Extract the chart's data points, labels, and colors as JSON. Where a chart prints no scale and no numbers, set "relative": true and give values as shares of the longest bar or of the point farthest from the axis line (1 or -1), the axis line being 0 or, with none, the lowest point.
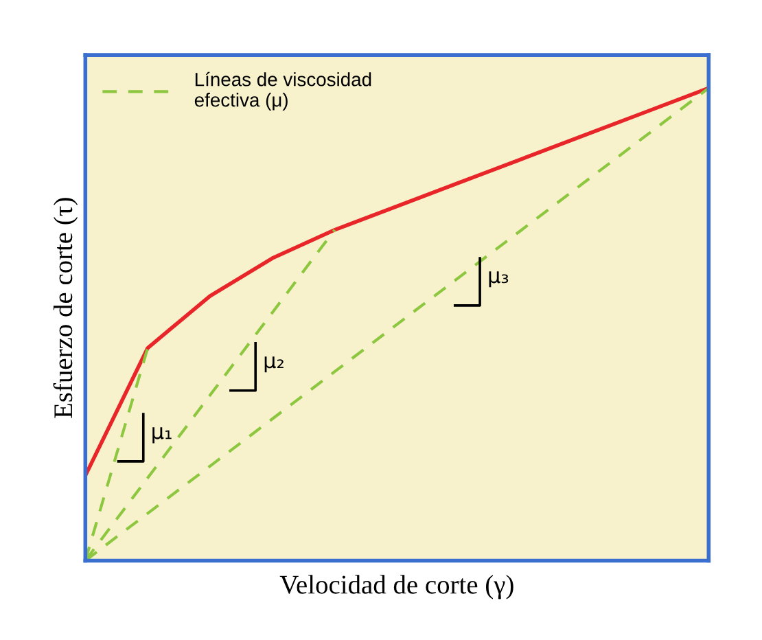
{
  "chart_data": {
    "type": "line",
    "relative": true,
    "xlabel": "Velocidad de corte (γ)",
    "ylabel": "Esfuerzo de corte (τ)",
    "legend": "top left",
    "categories": [
      null,
      null,
      null,
      null,
      null,
      null,
      null,
      null,
      null,
      null,
      null
    ],
    "series": [
      {
        "color": "#e8262a",
        "values": [
          0.18,
          0.45,
          0.56,
          0.64,
          0.7,
          0.75,
          0.8,
          0.85,
          0.9,
          0.95,
          1.0
        ],
        "line_style": "solid"
      },
      {
        "name": "Líneas de viscosidad\nefectiva (μ)",
        "color": "#8dc63f",
        "values": [
          0,
          0.45,
          null,
          null,
          null,
          null,
          null,
          null,
          null,
          null,
          null
        ],
        "line_style": "dashed"
      },
      {
        "color": "#8dc63f",
        "values": [
          0,
          0.175,
          0.35,
          0.525,
          0.7,
          null,
          null,
          null,
          null,
          null,
          null
        ],
        "line_style": "dashed"
      },
      {
        "color": "#8dc63f",
        "values": [
          0,
          0.1,
          0.2,
          0.3,
          0.4,
          0.5,
          0.6,
          0.7,
          0.8,
          0.9,
          1.0
        ],
        "line_style": "dashed"
      }
    ],
    "annotations": [
      "μ₁",
      "μ₂",
      "μ₃"
    ]
  }
}
